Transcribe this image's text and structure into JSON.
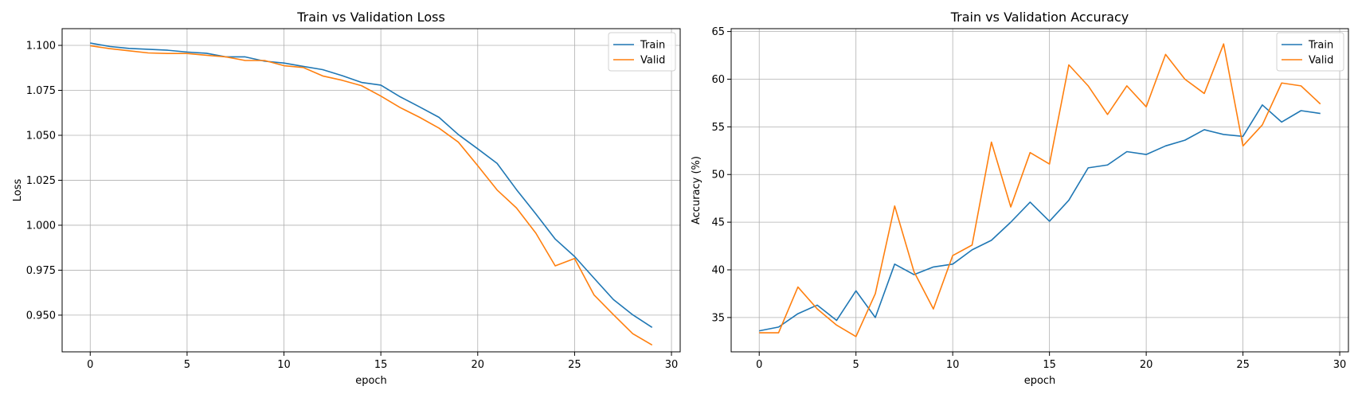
{
  "chart_data": [
    {
      "type": "line",
      "title": "Train vs Validation Loss",
      "xlabel": "epoch",
      "ylabel": "Loss",
      "xlim": [
        -1.45,
        30.45
      ],
      "ylim": [
        0.9296,
        1.1093
      ],
      "xticks": [
        "0",
        "5",
        "10",
        "15",
        "20",
        "25",
        "30"
      ],
      "yticks": [
        "0.950",
        "0.975",
        "1.000",
        "1.025",
        "1.050",
        "1.075",
        "1.100"
      ],
      "grid": true,
      "legend_position": "top-right",
      "x": [
        0,
        1,
        2,
        3,
        4,
        5,
        6,
        7,
        8,
        9,
        10,
        11,
        12,
        13,
        14,
        15,
        16,
        17,
        18,
        19,
        20,
        21,
        22,
        23,
        24,
        25,
        26,
        27,
        28,
        29
      ],
      "series": [
        {
          "name": "Train",
          "color": "#1f77b4",
          "values": [
            1.1013,
            1.0994,
            1.0983,
            1.0978,
            1.0973,
            1.0963,
            1.0956,
            1.0936,
            1.0936,
            1.0912,
            1.0902,
            1.0883,
            1.0865,
            1.0832,
            1.0794,
            1.0779,
            1.0714,
            1.0658,
            1.06,
            1.0504,
            1.0425,
            1.0344,
            1.0198,
            1.0063,
            0.9923,
            0.9826,
            0.9706,
            0.9587,
            0.9502,
            0.9432
          ]
        },
        {
          "name": "Valid",
          "color": "#ff7f0e",
          "values": [
            1.0998,
            1.0982,
            1.097,
            1.0958,
            1.0955,
            1.0955,
            1.0945,
            1.0936,
            1.0916,
            1.0916,
            1.0887,
            1.0877,
            1.083,
            1.0806,
            1.0776,
            1.0718,
            1.0654,
            1.06,
            1.054,
            1.0462,
            1.0331,
            1.0196,
            1.0096,
            0.9956,
            0.9774,
            0.9815,
            0.9613,
            0.9503,
            0.9397,
            0.9334
          ]
        }
      ]
    },
    {
      "type": "line",
      "title": "Train vs Validation Accuracy",
      "xlabel": "epoch",
      "ylabel": "Accuracy (%)",
      "xlim": [
        -1.45,
        30.45
      ],
      "ylim": [
        31.4,
        65.3
      ],
      "xticks": [
        "0",
        "5",
        "10",
        "15",
        "20",
        "25",
        "30"
      ],
      "yticks": [
        "35",
        "40",
        "45",
        "50",
        "55",
        "60",
        "65"
      ],
      "grid": true,
      "legend_position": "top-right",
      "x": [
        0,
        1,
        2,
        3,
        4,
        5,
        6,
        7,
        8,
        9,
        10,
        11,
        12,
        13,
        14,
        15,
        16,
        17,
        18,
        19,
        20,
        21,
        22,
        23,
        24,
        25,
        26,
        27,
        28,
        29
      ],
      "series": [
        {
          "name": "Train",
          "color": "#1f77b4",
          "values": [
            33.6,
            34.0,
            35.4,
            36.3,
            34.7,
            37.8,
            35.0,
            40.6,
            39.5,
            40.3,
            40.6,
            42.1,
            43.1,
            45.0,
            47.1,
            45.1,
            47.3,
            50.7,
            51.0,
            52.4,
            52.1,
            53.0,
            53.6,
            54.7,
            54.2,
            54.0,
            57.3,
            55.5,
            56.7,
            56.4
          ]
        },
        {
          "name": "Valid",
          "color": "#ff7f0e",
          "values": [
            33.4,
            33.4,
            38.2,
            35.9,
            34.2,
            33.0,
            37.5,
            46.7,
            39.8,
            35.9,
            41.5,
            42.6,
            53.4,
            46.6,
            52.3,
            51.1,
            61.5,
            59.3,
            56.3,
            59.3,
            57.1,
            62.6,
            60.0,
            58.5,
            63.7,
            53.0,
            55.2,
            59.6,
            59.3,
            57.4
          ]
        }
      ]
    }
  ]
}
